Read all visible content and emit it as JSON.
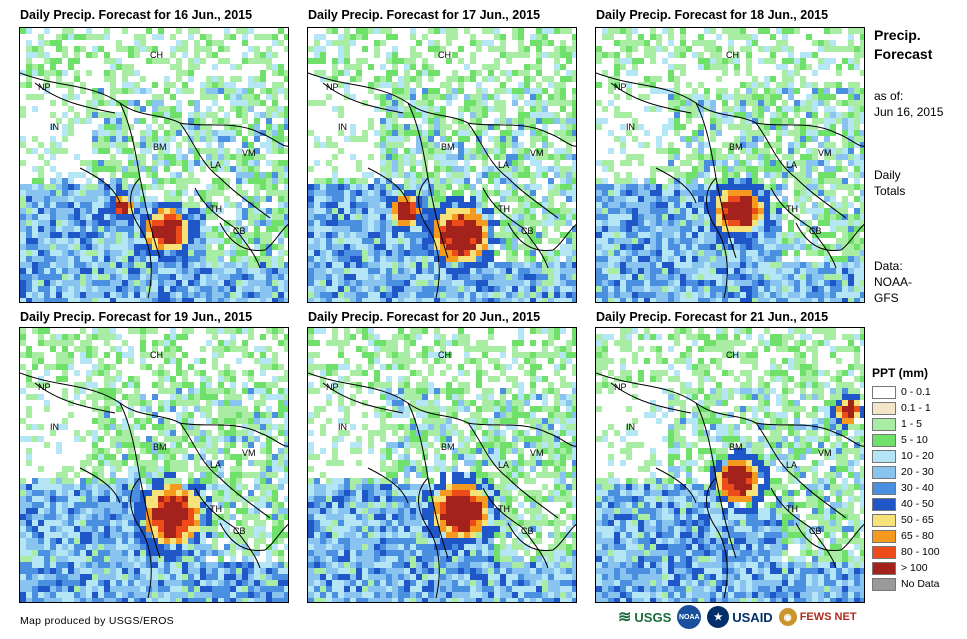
{
  "panels": [
    {
      "title": "Daily Precip. Forecast for 16 Jun., 2015"
    },
    {
      "title": "Daily Precip. Forecast for 17 Jun., 2015"
    },
    {
      "title": "Daily Precip. Forecast for 18 Jun., 2015"
    },
    {
      "title": "Daily Precip. Forecast for 19 Jun., 2015"
    },
    {
      "title": "Daily Precip. Forecast for 20 Jun., 2015"
    },
    {
      "title": "Daily Precip. Forecast for 21 Jun., 2015"
    }
  ],
  "map_labels": {
    "ch": "CH",
    "np": "NP",
    "in": "IN",
    "bm": "BM",
    "la": "LA",
    "vm": "VM",
    "th": "TH",
    "cb": "CB"
  },
  "side": {
    "title_line1": "Precip.",
    "title_line2": "Forecast",
    "asof_label": "as of:",
    "asof_date": "Jun 16, 2015",
    "daily_line1": "Daily",
    "daily_line2": "Totals",
    "data_label": "Data:",
    "data_line1": "NOAA-",
    "data_line2": "GFS"
  },
  "legend": {
    "title": "PPT (mm)",
    "items": [
      {
        "label": "0 - 0.1",
        "color": "#ffffff"
      },
      {
        "label": "0.1 - 1",
        "color": "#f2e5c8"
      },
      {
        "label": "1 - 5",
        "color": "#a9eda4"
      },
      {
        "label": "5 - 10",
        "color": "#6fe06a"
      },
      {
        "label": "10 - 20",
        "color": "#b5e6f5"
      },
      {
        "label": "20 - 30",
        "color": "#89c4f0"
      },
      {
        "label": "30 - 40",
        "color": "#4a8fe0"
      },
      {
        "label": "40 - 50",
        "color": "#1f57c8"
      },
      {
        "label": "50 - 65",
        "color": "#f7e27a"
      },
      {
        "label": "65 - 80",
        "color": "#f59a1e"
      },
      {
        "label": "80 - 100",
        "color": "#ee4b1b"
      },
      {
        "label": "> 100",
        "color": "#a3221c"
      },
      {
        "label": "No Data",
        "color": "#9a9a9a"
      }
    ]
  },
  "credit": "Map produced by USGS/EROS",
  "logos": {
    "usgs": "USGS",
    "noaa": "NOAA",
    "usaid": "USAID",
    "fewsnet": "FEWS NET"
  }
}
